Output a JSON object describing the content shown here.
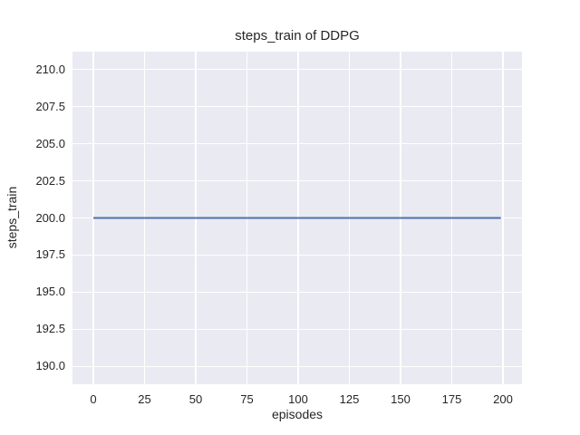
{
  "colors": {
    "figure_background": "#ffffff",
    "axes_background": "#eaeaf2",
    "gridline": "#ffffff",
    "line": "#4c72b0",
    "text": "#262626"
  },
  "chart_data": {
    "type": "line",
    "title": "steps_train of DDPG",
    "xlabel": "episodes",
    "ylabel": "steps_train",
    "x_ticks": [
      0,
      25,
      50,
      75,
      100,
      125,
      150,
      175,
      200
    ],
    "x_tick_labels": [
      "0",
      "25",
      "50",
      "75",
      "100",
      "125",
      "150",
      "175",
      "200"
    ],
    "y_ticks": [
      190.0,
      192.5,
      195.0,
      197.5,
      200.0,
      202.5,
      205.0,
      207.5,
      210.0
    ],
    "y_tick_labels": [
      "190.0",
      "192.5",
      "195.0",
      "197.5",
      "200.0",
      "202.5",
      "205.0",
      "207.5",
      "210.0"
    ],
    "xlim": [
      -10.2,
      209.3
    ],
    "ylim": [
      188.8,
      211.2
    ],
    "grid": true,
    "legend": "none",
    "series": [
      {
        "name": "steps_train",
        "color": "#4c72b0",
        "x": [
          0,
          199
        ],
        "y": [
          200,
          200
        ]
      }
    ]
  }
}
